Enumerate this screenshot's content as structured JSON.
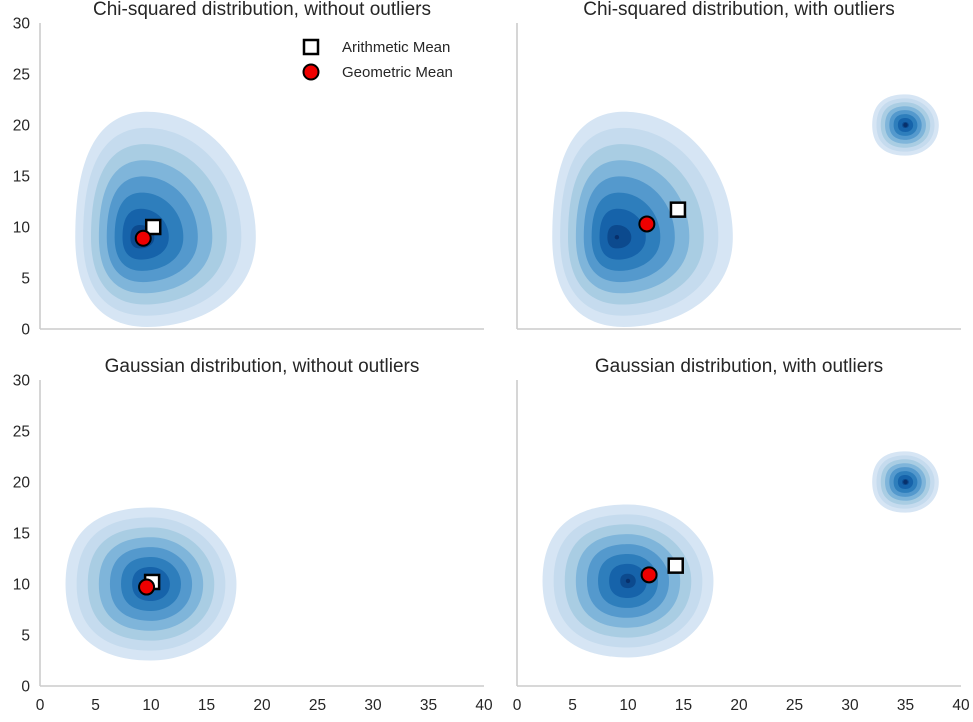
{
  "chart_data": [
    {
      "type": "kde-contour",
      "title": "Chi-squared distribution, without outliers",
      "xlim": [
        0,
        40
      ],
      "ylim": [
        0,
        30
      ],
      "xticks": [
        0,
        5,
        10,
        15,
        20,
        25,
        30,
        35,
        40
      ],
      "yticks": [
        0,
        5,
        10,
        15,
        20,
        25,
        30
      ],
      "density_peaks": [
        {
          "x": 9,
          "y": 9,
          "shape": "skewed"
        }
      ],
      "series": [
        {
          "name": "Arithmetic Mean",
          "marker": "square",
          "x": 10.2,
          "y": 10.0
        },
        {
          "name": "Geometric Mean",
          "marker": "circle",
          "x": 9.3,
          "y": 8.9
        }
      ],
      "legend": "top-right",
      "grid": false
    },
    {
      "type": "kde-contour",
      "title": "Chi-squared distribution, with outliers",
      "xlim": [
        0,
        40
      ],
      "ylim": [
        0,
        30
      ],
      "xticks": [
        0,
        5,
        10,
        15,
        20,
        25,
        30,
        35,
        40
      ],
      "yticks": [
        0,
        5,
        10,
        15,
        20,
        25,
        30
      ],
      "density_peaks": [
        {
          "x": 9,
          "y": 9,
          "shape": "skewed"
        },
        {
          "x": 35,
          "y": 20,
          "shape": "tight"
        }
      ],
      "series": [
        {
          "name": "Arithmetic Mean",
          "marker": "square",
          "x": 14.5,
          "y": 11.7
        },
        {
          "name": "Geometric Mean",
          "marker": "circle",
          "x": 11.7,
          "y": 10.3
        }
      ],
      "grid": false
    },
    {
      "type": "kde-contour",
      "title": "Gaussian distribution, without outliers",
      "xlim": [
        0,
        40
      ],
      "ylim": [
        0,
        30
      ],
      "xticks": [
        0,
        5,
        10,
        15,
        20,
        25,
        30,
        35,
        40
      ],
      "yticks": [
        0,
        5,
        10,
        15,
        20,
        25,
        30
      ],
      "density_peaks": [
        {
          "x": 10,
          "y": 10,
          "shape": "round"
        }
      ],
      "series": [
        {
          "name": "Arithmetic Mean",
          "marker": "square",
          "x": 10.1,
          "y": 10.2
        },
        {
          "name": "Geometric Mean",
          "marker": "circle",
          "x": 9.6,
          "y": 9.7
        }
      ],
      "grid": false
    },
    {
      "type": "kde-contour",
      "title": "Gaussian distribution, with outliers",
      "xlim": [
        0,
        40
      ],
      "ylim": [
        0,
        30
      ],
      "xticks": [
        0,
        5,
        10,
        15,
        20,
        25,
        30,
        35,
        40
      ],
      "yticks": [
        0,
        5,
        10,
        15,
        20,
        25,
        30
      ],
      "density_peaks": [
        {
          "x": 10,
          "y": 10.3,
          "shape": "round"
        },
        {
          "x": 35,
          "y": 20,
          "shape": "tight"
        }
      ],
      "series": [
        {
          "name": "Arithmetic Mean",
          "marker": "square",
          "x": 14.3,
          "y": 11.8
        },
        {
          "name": "Geometric Mean",
          "marker": "circle",
          "x": 11.9,
          "y": 10.9
        }
      ],
      "grid": false
    }
  ],
  "legend": {
    "arithmetic_label": "Arithmetic Mean",
    "geometric_label": "Geometric Mean"
  },
  "colors": {
    "contour_levels": [
      "#d6e5f4",
      "#c5dbee",
      "#a9cde3",
      "#7fb5da",
      "#5499cd",
      "#2e7ebc",
      "#1663aa",
      "#0c4a8e"
    ],
    "geometric_marker": "#ee0000",
    "arithmetic_marker": "#ffffff",
    "axis": "#cccccc"
  }
}
